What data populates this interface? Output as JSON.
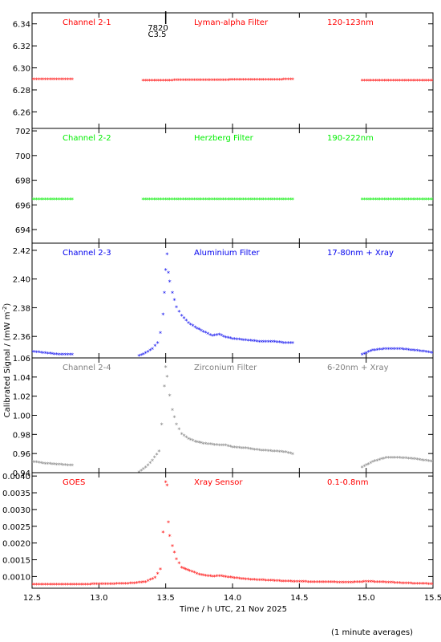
{
  "figure": {
    "xlabel": "Time / h UTC, 21 Nov 2025",
    "ylabel": "Calibrated Signal / (mW m",
    "ylabel_sup": "-2",
    "ylabel_close": ")",
    "footnote": "(1 minute averages)",
    "flare_marker": {
      "number": "7820",
      "class": "C3.5",
      "x": 13.5
    }
  },
  "chart_data": [
    {
      "type": "scatter",
      "channel": "Channel 2-1",
      "filter": "Lyman-alpha Filter",
      "band": "120-123nm",
      "color": "#ff0000",
      "xlim": [
        12.5,
        15.5
      ],
      "ylim": [
        6.245,
        6.35
      ],
      "yticks": [
        "6.26",
        "6.28",
        "6.30",
        "6.32",
        "6.34"
      ],
      "segments": [
        {
          "x": [
            12.5,
            12.8
          ],
          "y": [
            6.289,
            6.289
          ]
        },
        {
          "x": [
            13.33,
            14.45
          ],
          "y": [
            6.288,
            6.289
          ]
        },
        {
          "x": [
            14.97,
            15.5
          ],
          "y": [
            6.288,
            6.288
          ]
        }
      ]
    },
    {
      "type": "scatter",
      "channel": "Channel 2-2",
      "filter": "Herzberg Filter",
      "band": "190-222nm",
      "color": "#00ee00",
      "xlim": [
        12.5,
        15.5
      ],
      "ylim": [
        692.9,
        702.2
      ],
      "yticks": [
        "694",
        "696",
        "698",
        "700",
        "702"
      ],
      "segments": [
        {
          "x": [
            12.5,
            12.8
          ],
          "y": [
            696.4,
            696.4
          ]
        },
        {
          "x": [
            13.33,
            14.45
          ],
          "y": [
            696.4,
            696.4
          ]
        },
        {
          "x": [
            14.97,
            15.5
          ],
          "y": [
            696.4,
            696.4
          ]
        }
      ]
    },
    {
      "type": "scatter",
      "channel": "Channel 2-3",
      "filter": "Aluminium Filter",
      "band": "17-80nm + Xray",
      "color": "#0000ee",
      "xlim": [
        12.5,
        15.5
      ],
      "ylim": [
        2.345,
        2.425
      ],
      "yticks": [
        "2.36",
        "2.38",
        "2.40",
        "2.42"
      ],
      "segments": [
        {
          "x": [
            12.5,
            12.6,
            12.7,
            12.8
          ],
          "y": [
            2.349,
            2.348,
            2.347,
            2.347
          ]
        },
        {
          "x": [
            13.3,
            13.35,
            13.4,
            13.44,
            13.46,
            13.48,
            13.49,
            13.5,
            13.51,
            13.52,
            13.53,
            13.55,
            13.58,
            13.62,
            13.67,
            13.72,
            13.78,
            13.85,
            13.9,
            13.95,
            14.0,
            14.1,
            14.2,
            14.3,
            14.4,
            14.45
          ],
          "y": [
            2.346,
            2.348,
            2.351,
            2.355,
            2.362,
            2.375,
            2.39,
            2.406,
            2.417,
            2.404,
            2.398,
            2.39,
            2.38,
            2.374,
            2.369,
            2.366,
            2.363,
            2.36,
            2.361,
            2.359,
            2.358,
            2.357,
            2.356,
            2.356,
            2.355,
            2.355
          ]
        },
        {
          "x": [
            14.97,
            15.05,
            15.15,
            15.25,
            15.35,
            15.45,
            15.5
          ],
          "y": [
            2.347,
            2.35,
            2.351,
            2.351,
            2.35,
            2.349,
            2.348
          ]
        }
      ]
    },
    {
      "type": "scatter",
      "channel": "Channel 2-4",
      "filter": "Zirconium Filter",
      "band": "6-20nm + Xray",
      "color": "#808080",
      "xlim": [
        12.5,
        15.5
      ],
      "ylim": [
        0.94,
        1.06
      ],
      "yticks": [
        "0.94",
        "0.96",
        "0.98",
        "1.00",
        "1.02",
        "1.04",
        "1.06"
      ],
      "segments": [
        {
          "x": [
            12.5,
            12.6,
            12.7,
            12.8
          ],
          "y": [
            0.951,
            0.949,
            0.948,
            0.947
          ]
        },
        {
          "x": [
            13.3,
            13.35,
            13.4,
            13.45,
            13.47,
            13.49,
            13.5,
            13.51,
            13.53,
            13.55,
            13.58,
            13.62,
            13.67,
            13.72,
            13.78,
            13.85,
            13.9,
            13.95,
            14.0,
            14.1,
            14.2,
            14.3,
            14.4,
            14.45
          ],
          "y": [
            0.94,
            0.945,
            0.952,
            0.962,
            0.99,
            1.03,
            1.05,
            1.04,
            1.02,
            1.005,
            0.99,
            0.98,
            0.975,
            0.972,
            0.97,
            0.969,
            0.968,
            0.968,
            0.966,
            0.965,
            0.963,
            0.962,
            0.961,
            0.959
          ]
        },
        {
          "x": [
            14.97,
            15.05,
            15.15,
            15.25,
            15.35,
            15.45,
            15.5
          ],
          "y": [
            0.945,
            0.951,
            0.955,
            0.955,
            0.954,
            0.952,
            0.951
          ]
        }
      ]
    },
    {
      "type": "scatter",
      "channel": "GOES",
      "filter": "Xray Sensor",
      "band": "0.1-0.8nm",
      "color": "#ff0000",
      "xlim": [
        12.5,
        15.5
      ],
      "ylim": [
        0.00065,
        0.0041
      ],
      "yticks": [
        "0.0010",
        "0.0015",
        "0.0020",
        "0.0025",
        "0.0030",
        "0.0035",
        "0.0040"
      ],
      "segments": [
        {
          "x": [
            12.5,
            12.7,
            12.9,
            13.1,
            13.25,
            13.35,
            13.42,
            13.46,
            13.48,
            13.5,
            13.51,
            13.52,
            13.53,
            13.55,
            13.58,
            13.62,
            13.68,
            13.75,
            13.85,
            13.9,
            14.0,
            14.1,
            14.2,
            14.3,
            14.4,
            14.5,
            14.6,
            14.7,
            14.8,
            14.9,
            15.0,
            15.1,
            15.2,
            15.3,
            15.4,
            15.5
          ],
          "y": [
            0.00075,
            0.00074,
            0.00075,
            0.00076,
            0.00078,
            0.00082,
            0.00095,
            0.0012,
            0.0023,
            0.0038,
            0.0037,
            0.0026,
            0.0022,
            0.0019,
            0.0015,
            0.00125,
            0.00115,
            0.00105,
            0.00098,
            0.001,
            0.00095,
            0.0009,
            0.00088,
            0.00086,
            0.00084,
            0.00083,
            0.00082,
            0.00082,
            0.00081,
            0.00081,
            0.00083,
            0.00082,
            0.0008,
            0.00078,
            0.00077,
            0.00076
          ]
        }
      ]
    }
  ],
  "xticks": [
    "12.5",
    "13.0",
    "13.5",
    "14.0",
    "14.5",
    "15.0",
    "15.5"
  ],
  "xtick_values": [
    12.5,
    13.0,
    13.5,
    14.0,
    14.5,
    15.0,
    15.5
  ]
}
